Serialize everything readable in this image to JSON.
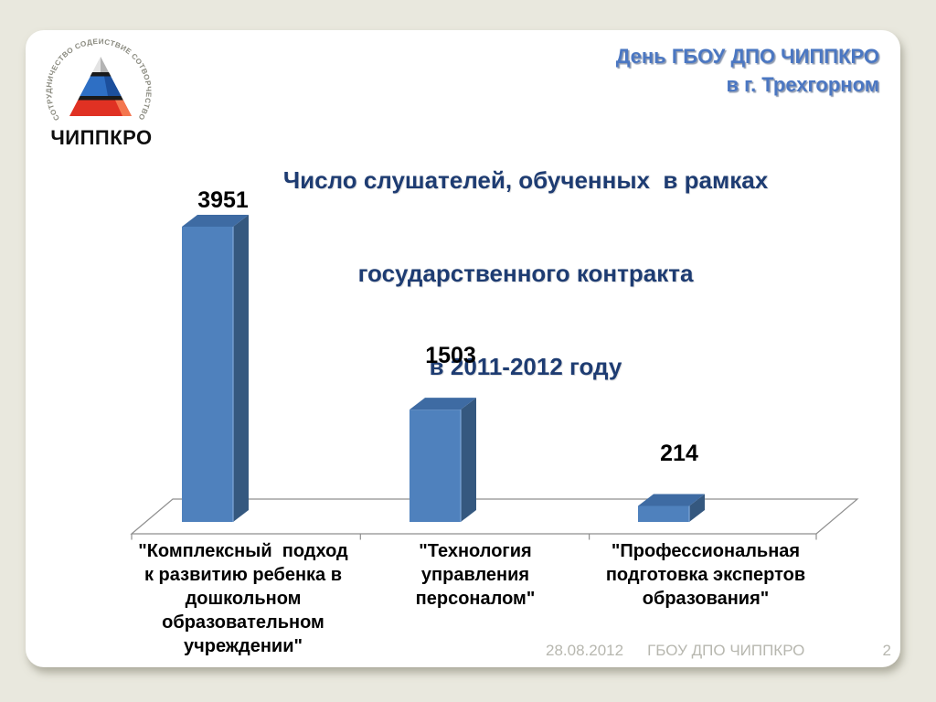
{
  "slide": {
    "background_color": "#e9e8de",
    "panel_color": "#ffffff",
    "logo": {
      "arc_text": "СОТРУДНИЧЕСТВО СОДЕЙСТВИЕ СОТВОРЧЕСТВО",
      "wordmark": "ЧИППКРО",
      "colors": {
        "top": "#d9d9d9",
        "middle": "#2e6fc4",
        "bottom": "#e03123"
      }
    },
    "header": {
      "lines": [
        "День ГБОУ ДПО ЧИППКРО",
        "в г. Трехгорном"
      ],
      "color": "#4b77c2"
    },
    "title": {
      "lines": [
        "Число слушателей, обученных  в рамках",
        "государственного контракта",
        "в 2011-2012 году"
      ],
      "color": "#1e3c72"
    },
    "footer": {
      "date": "28.08.2012",
      "org": "ГБОУ ДПО ЧИППКРО",
      "page": "2"
    }
  },
  "chart_data": {
    "type": "bar",
    "style": "3d-column",
    "title": "Число слушателей, обученных в рамках государственного контракта в 2011-2012 году",
    "categories": [
      "\"Комплексный  подход к развитию ребенка в дошкольном образовательном учреждении\"",
      "\"Технология управления персоналом\"",
      "\"Профессиональная подготовка экспертов образования\""
    ],
    "category_lines": [
      [
        "\"Комплексный  подход",
        "к развитию ребенка в",
        "дошкольном",
        "образовательном",
        "учреждении\""
      ],
      [
        "\"Технология",
        "управления",
        "персоналом\""
      ],
      [
        "\"Профессиональная",
        "подготовка экспертов",
        "образования\""
      ]
    ],
    "values": [
      3951,
      1503,
      214
    ],
    "data_labels": [
      "3951",
      "1503",
      "214"
    ],
    "ylim": [
      0,
      4000
    ],
    "legend": "none",
    "grid": false,
    "axes": {
      "y_axis_visible": false,
      "x_axis_visible": true
    },
    "colors": {
      "front": "#4f81bd",
      "top": "#3e6ba3",
      "side": "#35587f",
      "edge": "#7aa3d4",
      "axis": "#8f8f8f",
      "label": "#000000"
    }
  }
}
